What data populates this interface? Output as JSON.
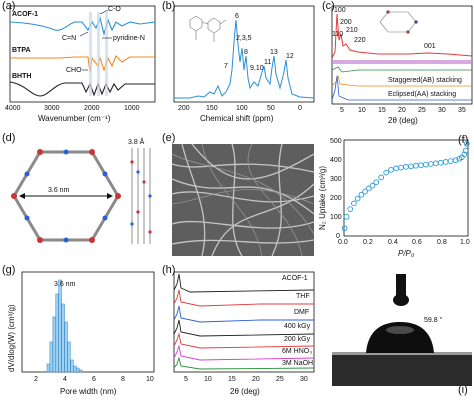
{
  "panels": {
    "a": {
      "label": "(a)",
      "xlabel": "Wavenumber (cm⁻¹)",
      "xticks": [
        "4000",
        "3000",
        "2000",
        "1000"
      ],
      "series": [
        {
          "name": "ACOF-1",
          "color": "#2a8fd6"
        },
        {
          "name": "BTPA",
          "color": "#f08a24"
        },
        {
          "name": "BHTH",
          "color": "#222222"
        }
      ],
      "annotations": [
        "C-O",
        "C=N",
        "pyridine-N",
        "CHO"
      ]
    },
    "b": {
      "label": "(b)",
      "xlabel": "Chemical shift (ppm)",
      "xticks": [
        "200",
        "150",
        "100",
        "50",
        "0"
      ],
      "peak_labels": [
        "6",
        "2,3,5",
        "8",
        "7",
        "9,10",
        "13",
        "11",
        "12"
      ]
    },
    "c": {
      "label": "(c)",
      "xlabel": "2θ (deg)",
      "xticks": [
        "5",
        "10",
        "15",
        "20",
        "25",
        "30",
        "35"
      ],
      "ylabel_parts": [
        "100",
        "110",
        "200",
        "210",
        "220",
        "001"
      ],
      "legend": [
        "Staggered(AB) stacking",
        "Eclipsed(AA) stacking"
      ]
    },
    "d": {
      "label": "(d)",
      "pore": "3.6 nm",
      "layer": "3.8 Å"
    },
    "e": {
      "label": "(e)"
    },
    "f": {
      "label": "(f)",
      "ylabel": "N₂ Uptake (cm³/g)",
      "xlabel": "P/P₀",
      "xticks": [
        "0.0",
        "0.2",
        "0.4",
        "0.6",
        "0.8",
        "1.0"
      ],
      "yticks": [
        "0",
        "100",
        "200",
        "300",
        "400",
        "500"
      ]
    },
    "g": {
      "label": "(g)",
      "ylabel": "dV/dlog(W) (cm³/g)",
      "xlabel": "Pore width (nm)",
      "xticks": [
        "2",
        "4",
        "6",
        "8",
        "10"
      ],
      "peak": "3.6 nm"
    },
    "h": {
      "label": "(h)",
      "xlabel": "2θ (deg)",
      "xticks": [
        "5",
        "10",
        "15",
        "20",
        "25",
        "30"
      ],
      "series": [
        {
          "name": "ACOF-1",
          "color": "#222222"
        },
        {
          "name": "THF",
          "color": "#e23b3b"
        },
        {
          "name": "DMF",
          "color": "#2a5fd6"
        },
        {
          "name": "400 kGy",
          "color": "#222222"
        },
        {
          "name": "200 kGy",
          "color": "#e23b3b"
        },
        {
          "name": "6M HNO₃",
          "color": "#d63bd6"
        },
        {
          "name": "3M NaOH",
          "color": "#2a8f3a"
        }
      ]
    },
    "i": {
      "label": "(i)",
      "angle": "59.8 °"
    }
  },
  "chart_data": [
    {
      "type": "line",
      "panel": "f",
      "xlabel": "P/P₀",
      "ylabel": "N₂ Uptake (cm³/g)",
      "xlim": [
        0,
        1.0
      ],
      "ylim": [
        0,
        500
      ],
      "x": [
        0.005,
        0.02,
        0.05,
        0.08,
        0.11,
        0.14,
        0.17,
        0.2,
        0.23,
        0.26,
        0.3,
        0.34,
        0.38,
        0.42,
        0.46,
        0.5,
        0.54,
        0.58,
        0.62,
        0.66,
        0.7,
        0.74,
        0.78,
        0.82,
        0.86,
        0.9,
        0.93,
        0.95,
        0.97,
        0.98,
        0.99
      ],
      "values": [
        40,
        100,
        140,
        170,
        195,
        215,
        232,
        248,
        262,
        280,
        305,
        330,
        345,
        352,
        356,
        360,
        363,
        366,
        369,
        372,
        375,
        378,
        382,
        386,
        390,
        395,
        402,
        410,
        425,
        445,
        480
      ]
    },
    {
      "type": "bar",
      "panel": "g",
      "xlabel": "Pore width (nm)",
      "ylabel": "dV/dlog(W) (cm³/g)",
      "xlim": [
        1,
        10
      ],
      "ylim": [
        0,
        1.0
      ],
      "x": [
        2.8,
        3.0,
        3.2,
        3.4,
        3.6,
        3.8,
        4.0,
        4.2,
        4.4,
        4.6,
        4.8,
        5.0
      ],
      "values": [
        0.08,
        0.3,
        0.55,
        0.78,
        0.92,
        0.68,
        0.5,
        0.3,
        0.12,
        0.06,
        0.04,
        0.02
      ]
    }
  ]
}
